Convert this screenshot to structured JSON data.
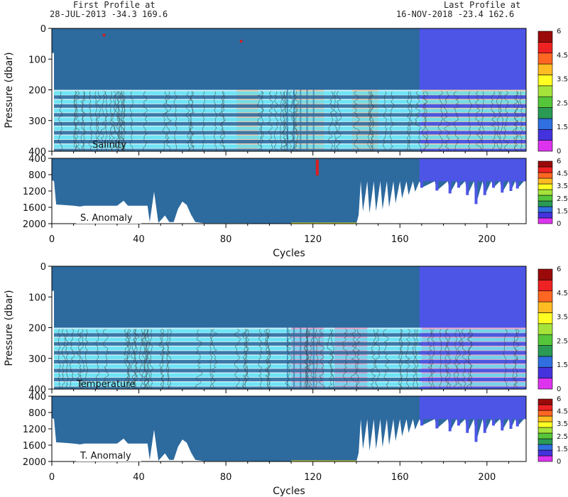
{
  "header": {
    "first_line1": "First Profile at",
    "first_line2": "28-JUL-2013    -34.3  169.6",
    "last_line1": "Last Profile at",
    "last_line2": "16-NOV-2018    -23.4  162.6"
  },
  "colors": {
    "base_blue": "#2d6a9e",
    "late_blue": "#4d55e6",
    "stripe_cyan": "#4fe0f4",
    "salinity_tint": "#f6c9a6",
    "temperature_tint": "#f59cc6",
    "anomaly_yellow": "#f4f01a",
    "contour": "#333333"
  },
  "colorbar": {
    "levels": [
      0,
      1,
      1.5,
      2,
      2.5,
      3,
      3.5,
      4,
      4.5,
      5,
      6
    ],
    "colors": [
      "#dd33ee",
      "#4433dd",
      "#2f6fe0",
      "#2a9a55",
      "#55c63a",
      "#a6e33a",
      "#ffff22",
      "#ffbb22",
      "#ff6622",
      "#ee2222",
      "#9a0a0a"
    ],
    "tick_labels": [
      "0",
      "1.5",
      "2.5",
      "3.5",
      "4.5",
      "6"
    ]
  },
  "chart_data": [
    {
      "type": "heatmap",
      "panel_label": "Salinity",
      "ylabel": "Pressure (dbar)",
      "xlim": [
        0,
        218
      ],
      "ylim": [
        400,
        0
      ],
      "x_ticks": [
        "0",
        "40",
        "80",
        "120",
        "160",
        "200"
      ],
      "y_ticks": [
        "0",
        "100",
        "200",
        "300",
        "400"
      ],
      "late_cycle_start": 169,
      "upper_layer_bottom": 200,
      "stripe_pressures": [
        205,
        218,
        233,
        247,
        262,
        276,
        291,
        305,
        320,
        334,
        349,
        363,
        378,
        392
      ],
      "tinted_cycle_ranges": [
        [
          85,
          95
        ],
        [
          112,
          125
        ],
        [
          138,
          150
        ],
        [
          170,
          218
        ]
      ],
      "spots": [
        [
          24,
          22
        ],
        [
          87,
          42
        ]
      ]
    },
    {
      "type": "heatmap",
      "panel_label": "S. Anomaly",
      "xlabel": "Cycles",
      "xlim": [
        0,
        218
      ],
      "ylim": [
        2000,
        400
      ],
      "x_ticks": [
        "0",
        "40",
        "80",
        "120",
        "160",
        "200"
      ],
      "y_ticks": [
        "400",
        "800",
        "1200",
        "1600",
        "2000"
      ],
      "late_cycle_start": 169,
      "red_marker": {
        "cycle": 122,
        "p_top": 430,
        "p_bottom": 820
      },
      "yellow_band_cycles": [
        110,
        140
      ],
      "profile_depths": [
        [
          0,
          930
        ],
        [
          1,
          960
        ],
        [
          2,
          1530
        ],
        [
          5,
          1540
        ],
        [
          10,
          1560
        ],
        [
          13,
          1580
        ],
        [
          15,
          1560
        ],
        [
          20,
          1560
        ],
        [
          25,
          1560
        ],
        [
          30,
          1560
        ],
        [
          33,
          1440
        ],
        [
          35,
          1560
        ],
        [
          40,
          1560
        ],
        [
          44,
          1560
        ],
        [
          45,
          1960
        ],
        [
          46,
          1580
        ],
        [
          47,
          1220
        ],
        [
          49,
          1980
        ],
        [
          52,
          1800
        ],
        [
          54,
          1960
        ],
        [
          56,
          1960
        ],
        [
          58,
          1640
        ],
        [
          60,
          1460
        ],
        [
          62,
          1540
        ],
        [
          64,
          1780
        ],
        [
          66,
          1960
        ],
        [
          70,
          1990
        ],
        [
          90,
          1990
        ],
        [
          104,
          2010
        ],
        [
          106,
          1990
        ],
        [
          110,
          2000
        ],
        [
          125,
          2000
        ],
        [
          140,
          2000
        ],
        [
          141,
          1790
        ],
        [
          142,
          960
        ],
        [
          143,
          1700
        ],
        [
          145,
          960
        ],
        [
          146,
          1740
        ],
        [
          148,
          960
        ],
        [
          149,
          1700
        ],
        [
          151,
          960
        ],
        [
          152,
          1650
        ],
        [
          154,
          960
        ],
        [
          155,
          1600
        ],
        [
          157,
          960
        ],
        [
          158,
          1500
        ],
        [
          160,
          960
        ],
        [
          161,
          1380
        ],
        [
          163,
          960
        ],
        [
          164,
          1300
        ],
        [
          166,
          960
        ],
        [
          167,
          1220
        ],
        [
          169,
          960
        ],
        [
          170,
          1120
        ],
        [
          176,
          960
        ],
        [
          177,
          1190
        ],
        [
          182,
          960
        ],
        [
          183,
          1260
        ],
        [
          186,
          960
        ],
        [
          187,
          1120
        ],
        [
          190,
          960
        ],
        [
          191,
          1300
        ],
        [
          194,
          960
        ],
        [
          195,
          1520
        ],
        [
          198,
          960
        ],
        [
          199,
          1300
        ],
        [
          202,
          960
        ],
        [
          203,
          1120
        ],
        [
          206,
          960
        ],
        [
          207,
          1240
        ],
        [
          210,
          960
        ],
        [
          211,
          1200
        ],
        [
          213,
          960
        ],
        [
          214,
          1140
        ],
        [
          217,
          960
        ]
      ]
    },
    {
      "type": "heatmap",
      "panel_label": "Temperature",
      "ylabel": "Pressure (dbar)",
      "xlim": [
        0,
        218
      ],
      "ylim": [
        400,
        0
      ],
      "x_ticks": [
        "0",
        "40",
        "80",
        "120",
        "160",
        "200"
      ],
      "y_ticks": [
        "0",
        "100",
        "200",
        "300",
        "400"
      ],
      "late_cycle_start": 169,
      "upper_layer_bottom": 200,
      "stripe_pressures": [
        205,
        218,
        233,
        247,
        262,
        276,
        291,
        305,
        320,
        334,
        349,
        363,
        378,
        392
      ],
      "tinted_cycle_ranges": [
        [
          110,
          125
        ],
        [
          130,
          145
        ],
        [
          170,
          218
        ]
      ],
      "spots": []
    },
    {
      "type": "heatmap",
      "panel_label": "T. Anomaly",
      "xlabel": "Cycles",
      "xlim": [
        0,
        218
      ],
      "ylim": [
        2000,
        400
      ],
      "x_ticks": [
        "0",
        "40",
        "80",
        "120",
        "160",
        "200"
      ],
      "y_ticks": [
        "400",
        "800",
        "1200",
        "1600",
        "2000"
      ],
      "late_cycle_start": 169,
      "red_marker": null,
      "yellow_band_cycles": [
        110,
        140
      ],
      "profile_depths": [
        [
          0,
          930
        ],
        [
          1,
          960
        ],
        [
          2,
          1530
        ],
        [
          5,
          1540
        ],
        [
          10,
          1560
        ],
        [
          13,
          1580
        ],
        [
          15,
          1560
        ],
        [
          20,
          1560
        ],
        [
          25,
          1560
        ],
        [
          30,
          1560
        ],
        [
          33,
          1440
        ],
        [
          35,
          1560
        ],
        [
          40,
          1560
        ],
        [
          44,
          1560
        ],
        [
          45,
          1960
        ],
        [
          46,
          1580
        ],
        [
          47,
          1220
        ],
        [
          49,
          1980
        ],
        [
          52,
          1800
        ],
        [
          54,
          1960
        ],
        [
          56,
          1960
        ],
        [
          58,
          1640
        ],
        [
          60,
          1460
        ],
        [
          62,
          1540
        ],
        [
          64,
          1780
        ],
        [
          66,
          1960
        ],
        [
          70,
          1990
        ],
        [
          90,
          1990
        ],
        [
          104,
          2010
        ],
        [
          106,
          1990
        ],
        [
          110,
          2000
        ],
        [
          125,
          2000
        ],
        [
          140,
          2000
        ],
        [
          141,
          1790
        ],
        [
          142,
          960
        ],
        [
          143,
          1700
        ],
        [
          145,
          960
        ],
        [
          146,
          1740
        ],
        [
          148,
          960
        ],
        [
          149,
          1700
        ],
        [
          151,
          960
        ],
        [
          152,
          1650
        ],
        [
          154,
          960
        ],
        [
          155,
          1600
        ],
        [
          157,
          960
        ],
        [
          158,
          1500
        ],
        [
          160,
          960
        ],
        [
          161,
          1380
        ],
        [
          163,
          960
        ],
        [
          164,
          1300
        ],
        [
          166,
          960
        ],
        [
          167,
          1220
        ],
        [
          169,
          960
        ],
        [
          170,
          1120
        ],
        [
          176,
          960
        ],
        [
          177,
          1190
        ],
        [
          182,
          960
        ],
        [
          183,
          1260
        ],
        [
          186,
          960
        ],
        [
          187,
          1120
        ],
        [
          190,
          960
        ],
        [
          191,
          1300
        ],
        [
          194,
          960
        ],
        [
          195,
          1520
        ],
        [
          198,
          960
        ],
        [
          199,
          1300
        ],
        [
          202,
          960
        ],
        [
          203,
          1120
        ],
        [
          206,
          960
        ],
        [
          207,
          1240
        ],
        [
          210,
          960
        ],
        [
          211,
          1200
        ],
        [
          213,
          960
        ],
        [
          214,
          1140
        ],
        [
          217,
          960
        ]
      ]
    }
  ]
}
